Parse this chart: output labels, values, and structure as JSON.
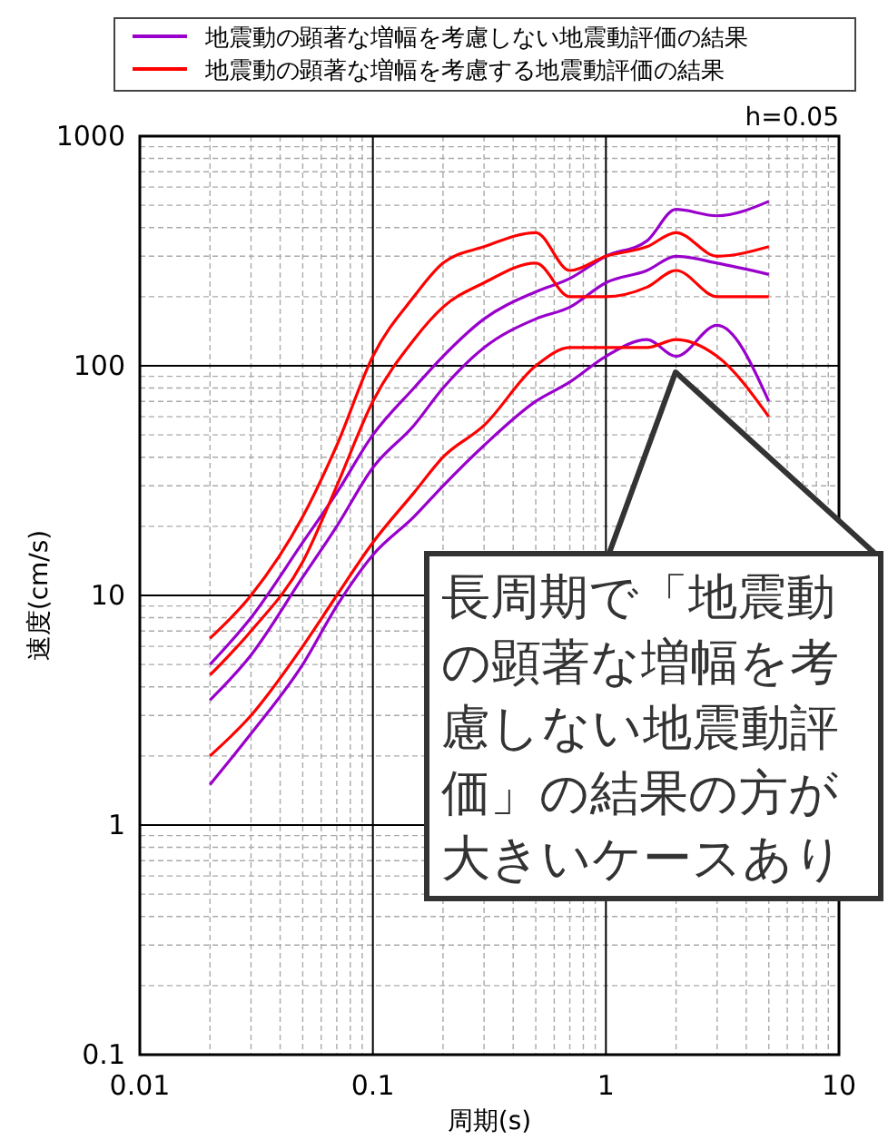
{
  "chart_data": {
    "type": "line",
    "xlabel": "周期(s)",
    "ylabel": "速度(cm/s)",
    "log": "xy",
    "grid": true,
    "legend": "top",
    "marker": "none",
    "line_style": "solid",
    "xlim": [
      0.01,
      10
    ],
    "xticks": [
      0.01,
      0.1,
      1,
      10
    ],
    "ylim": [
      0.1,
      1000
    ],
    "yticks": [
      0.1,
      1,
      10,
      100,
      1000
    ],
    "x": [
      0.02,
      0.03,
      0.05,
      0.07,
      0.1,
      0.15,
      0.2,
      0.3,
      0.5,
      0.7,
      1,
      1.5,
      2,
      3,
      5
    ],
    "series": [
      {
        "name": "地震動の顕著な増幅を考慮しない地震動評価の結果",
        "color": "#9900cc",
        "values": [
          3.5,
          5.5,
          12,
          20,
          36,
          55,
          80,
          120,
          160,
          180,
          230,
          260,
          300,
          280,
          250
        ]
      },
      {
        "color": "#9900cc",
        "values": [
          5,
          8,
          17,
          28,
          50,
          80,
          110,
          160,
          210,
          240,
          300,
          350,
          480,
          450,
          520
        ]
      },
      {
        "color": "#9900cc",
        "values": [
          1.5,
          2.5,
          5,
          9,
          15,
          22,
          30,
          45,
          70,
          85,
          110,
          130,
          110,
          150,
          70
        ]
      },
      {
        "name": "地震動の顕著な増幅を考慮する地震動評価の結果",
        "color": "#ff0000",
        "values": [
          4.5,
          7,
          14,
          30,
          70,
          130,
          180,
          230,
          280,
          200,
          200,
          220,
          260,
          200,
          200
        ]
      },
      {
        "color": "#ff0000",
        "values": [
          6.5,
          10,
          22,
          45,
          110,
          200,
          280,
          330,
          380,
          260,
          300,
          330,
          380,
          300,
          330
        ]
      },
      {
        "color": "#ff0000",
        "values": [
          2,
          3,
          6,
          10,
          17,
          28,
          40,
          55,
          100,
          120,
          120,
          120,
          130,
          110,
          60
        ]
      }
    ],
    "annotations": [
      "h=0.05",
      "長周期で「地震動の顕著な増幅を考慮しない地震動評価」の結果の方が大きいケースあり"
    ]
  }
}
